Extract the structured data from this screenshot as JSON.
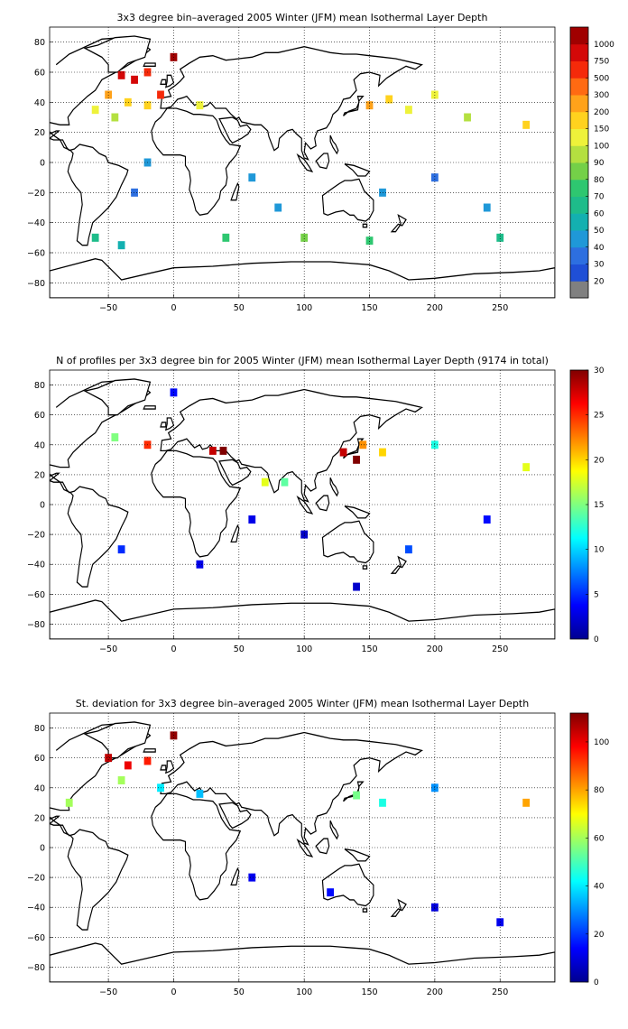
{
  "chart_data": [
    {
      "type": "heatmap",
      "title": "3x3 degree bin–averaged 2005 Winter (JFM) mean Isothermal Layer Depth",
      "xlim": [
        -95,
        292
      ],
      "ylim": [
        -90,
        90
      ],
      "xticks": [
        -50,
        0,
        50,
        100,
        150,
        200,
        250
      ],
      "yticks": [
        -80,
        -60,
        -40,
        -20,
        0,
        20,
        40,
        60,
        80
      ],
      "grid": true,
      "colorbar": {
        "scale": "categorical",
        "labels": [
          "20",
          "30",
          "40",
          "50",
          "60",
          "70",
          "80",
          "90",
          "100",
          "150",
          "200",
          "300",
          "500",
          "750",
          "1000"
        ],
        "colors": [
          "#808080",
          "#1f4fd6",
          "#2d6fe0",
          "#1f98d8",
          "#13b0b0",
          "#1ebc8a",
          "#2ec770",
          "#74d048",
          "#b4e040",
          "#eef23a",
          "#ffd21e",
          "#ffa21a",
          "#ff6a12",
          "#f52a0a",
          "#d40808",
          "#a00000"
        ]
      },
      "bins": [
        {
          "x": -40,
          "y": 58,
          "v": "900"
        },
        {
          "x": -30,
          "y": 55,
          "v": "800"
        },
        {
          "x": -20,
          "y": 60,
          "v": "700"
        },
        {
          "x": -50,
          "y": 45,
          "v": "200"
        },
        {
          "x": -35,
          "y": 40,
          "v": "150"
        },
        {
          "x": -60,
          "y": 35,
          "v": "100"
        },
        {
          "x": -45,
          "y": 30,
          "v": "90"
        },
        {
          "x": -20,
          "y": 38,
          "v": "150"
        },
        {
          "x": -10,
          "y": 45,
          "v": "500"
        },
        {
          "x": 0,
          "y": 70,
          "v": "1000"
        },
        {
          "x": 20,
          "y": 38,
          "v": "120"
        },
        {
          "x": 150,
          "y": 38,
          "v": "200"
        },
        {
          "x": 165,
          "y": 42,
          "v": "150"
        },
        {
          "x": 180,
          "y": 35,
          "v": "100"
        },
        {
          "x": 200,
          "y": 45,
          "v": "120"
        },
        {
          "x": 225,
          "y": 30,
          "v": "90"
        },
        {
          "x": 270,
          "y": 25,
          "v": "150"
        },
        {
          "x": -20,
          "y": 0,
          "v": "40"
        },
        {
          "x": -30,
          "y": -20,
          "v": "30"
        },
        {
          "x": 60,
          "y": -10,
          "v": "40"
        },
        {
          "x": 80,
          "y": -30,
          "v": "40"
        },
        {
          "x": 160,
          "y": -20,
          "v": "40"
        },
        {
          "x": 200,
          "y": -10,
          "v": "30"
        },
        {
          "x": 240,
          "y": -30,
          "v": "40"
        },
        {
          "x": -60,
          "y": -50,
          "v": "60"
        },
        {
          "x": 40,
          "y": -50,
          "v": "70"
        },
        {
          "x": 100,
          "y": -50,
          "v": "80"
        },
        {
          "x": 150,
          "y": -52,
          "v": "70"
        },
        {
          "x": 250,
          "y": -50,
          "v": "60"
        },
        {
          "x": -40,
          "y": -55,
          "v": "50"
        }
      ]
    },
    {
      "type": "heatmap",
      "title": "N of profiles per 3x3 degree bin for 2005 Winter (JFM) mean Isothermal Layer Depth  (9174 in total)",
      "xlim": [
        -95,
        292
      ],
      "ylim": [
        -90,
        90
      ],
      "xticks": [
        -50,
        0,
        50,
        100,
        150,
        200,
        250
      ],
      "yticks": [
        -80,
        -60,
        -40,
        -20,
        0,
        20,
        40,
        60,
        80
      ],
      "grid": true,
      "colorbar": {
        "scale": "linear",
        "min": 0,
        "max": 30,
        "ticks": [
          0,
          5,
          10,
          15,
          20,
          25,
          30
        ]
      },
      "bins": [
        {
          "x": -45,
          "y": 45,
          "v": 15
        },
        {
          "x": -20,
          "y": 40,
          "v": 25
        },
        {
          "x": 0,
          "y": 75,
          "v": 4
        },
        {
          "x": 30,
          "y": 36,
          "v": 28
        },
        {
          "x": 38,
          "y": 36,
          "v": 30
        },
        {
          "x": 130,
          "y": 35,
          "v": 28
        },
        {
          "x": 140,
          "y": 30,
          "v": 30
        },
        {
          "x": 145,
          "y": 40,
          "v": 22
        },
        {
          "x": 160,
          "y": 35,
          "v": 20
        },
        {
          "x": 200,
          "y": 40,
          "v": 12
        },
        {
          "x": 270,
          "y": 25,
          "v": 18
        },
        {
          "x": 70,
          "y": 15,
          "v": 18
        },
        {
          "x": 85,
          "y": 15,
          "v": 14
        },
        {
          "x": 60,
          "y": -10,
          "v": 3
        },
        {
          "x": 100,
          "y": -20,
          "v": 2
        },
        {
          "x": 180,
          "y": -30,
          "v": 6
        },
        {
          "x": 240,
          "y": -10,
          "v": 4
        },
        {
          "x": -40,
          "y": -30,
          "v": 5
        },
        {
          "x": 20,
          "y": -40,
          "v": 3
        },
        {
          "x": 140,
          "y": -55,
          "v": 2
        }
      ]
    },
    {
      "type": "heatmap",
      "title": "St. deviation for 3x3 degree bin–averaged 2005 Winter (JFM) mean Isothermal Layer Depth",
      "xlim": [
        -95,
        292
      ],
      "ylim": [
        -90,
        90
      ],
      "xticks": [
        -50,
        0,
        50,
        100,
        150,
        200,
        250
      ],
      "yticks": [
        -80,
        -60,
        -40,
        -20,
        0,
        20,
        40,
        60,
        80
      ],
      "grid": true,
      "colorbar": {
        "scale": "linear",
        "min": 0,
        "max": 112,
        "ticks": [
          0,
          20,
          40,
          60,
          80,
          100
        ]
      },
      "bins": [
        {
          "x": -50,
          "y": 60,
          "v": 105
        },
        {
          "x": -35,
          "y": 55,
          "v": 100
        },
        {
          "x": -20,
          "y": 58,
          "v": 95
        },
        {
          "x": -40,
          "y": 45,
          "v": 60
        },
        {
          "x": -10,
          "y": 40,
          "v": 40
        },
        {
          "x": 0,
          "y": 75,
          "v": 110
        },
        {
          "x": 20,
          "y": 36,
          "v": 35
        },
        {
          "x": 140,
          "y": 35,
          "v": 55
        },
        {
          "x": 160,
          "y": 30,
          "v": 45
        },
        {
          "x": 200,
          "y": 40,
          "v": 30
        },
        {
          "x": 270,
          "y": 30,
          "v": 80
        },
        {
          "x": -80,
          "y": 30,
          "v": 60
        },
        {
          "x": 60,
          "y": -20,
          "v": 12
        },
        {
          "x": 120,
          "y": -30,
          "v": 15
        },
        {
          "x": 200,
          "y": -40,
          "v": 10
        },
        {
          "x": 250,
          "y": -50,
          "v": 12
        }
      ]
    }
  ]
}
